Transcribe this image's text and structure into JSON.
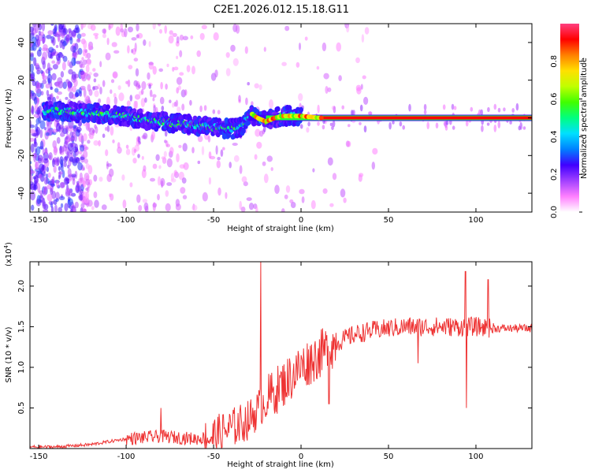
{
  "title": "C2E1.2026.012.15.18.G11",
  "chart_data": [
    {
      "type": "heatmap",
      "name": "spectrogram",
      "xlabel": "Height of straight line (km)",
      "ylabel": "Frequency (Hz)",
      "xlim": [
        -155,
        132
      ],
      "ylim": [
        -50,
        50
      ],
      "xticks": [
        -150,
        -100,
        -50,
        0,
        50,
        100
      ],
      "yticks": [
        -40,
        -20,
        0,
        20,
        40
      ],
      "colorbar": {
        "label": "Normalized spectral amplitude",
        "range": [
          0,
          1
        ],
        "ticks": [
          0.0,
          0.2,
          0.4,
          0.6,
          0.8
        ],
        "colors": [
          "#ffffff",
          "#ff80ff",
          "#a040ff",
          "#4000ff",
          "#0080ff",
          "#00e0ff",
          "#00ff80",
          "#40ff00",
          "#c0ff00",
          "#ffe000",
          "#ff8000",
          "#ff0000",
          "#ff4080"
        ]
      },
      "ridge": {
        "x": [
          -150,
          -140,
          -130,
          -120,
          -110,
          -100,
          -90,
          -80,
          -70,
          -60,
          -50,
          -40,
          -35,
          -30,
          -28,
          -25,
          -20,
          -15,
          -10,
          0,
          10,
          30,
          60,
          100,
          132
        ],
        "y": [
          3.5,
          4,
          3,
          2.5,
          2,
          1,
          -1,
          -2,
          -3,
          -4,
          -5,
          -6,
          -5,
          0,
          2,
          0,
          -2,
          0,
          1,
          1,
          0,
          0,
          0,
          0,
          0
        ]
      }
    },
    {
      "type": "line",
      "name": "snr",
      "xlabel": "Height of straight line (km)",
      "ylabel": "SNR (10 * v/v)",
      "yscale_label": "(x10",
      "yscale_exp": "4",
      "xlim": [
        -155,
        132
      ],
      "ylim": [
        0,
        2.3
      ],
      "xticks": [
        -150,
        -100,
        -50,
        0,
        50,
        100
      ],
      "yticks": [
        0.5,
        1.0,
        1.5,
        2.0
      ],
      "color": "#ee3333",
      "trend": {
        "x": [
          -155,
          -140,
          -120,
          -100,
          -80,
          -60,
          -50,
          -40,
          -30,
          -20,
          -10,
          0,
          10,
          20,
          30,
          40,
          50,
          60,
          80,
          100,
          110,
          132
        ],
        "y": [
          0.02,
          0.02,
          0.05,
          0.12,
          0.15,
          0.12,
          0.15,
          0.25,
          0.35,
          0.6,
          0.8,
          1.0,
          1.15,
          1.3,
          1.4,
          1.45,
          1.48,
          1.5,
          1.5,
          1.5,
          1.48,
          1.48
        ]
      },
      "spikes": [
        {
          "x": -23,
          "y": 2.3
        },
        {
          "x": -80,
          "y": 0.5
        },
        {
          "x": 94,
          "y": 2.18
        },
        {
          "x": 94.5,
          "y": 0.5
        },
        {
          "x": 107,
          "y": 2.08
        },
        {
          "x": 67,
          "y": 1.05
        },
        {
          "x": 16,
          "y": 0.55
        }
      ]
    }
  ]
}
